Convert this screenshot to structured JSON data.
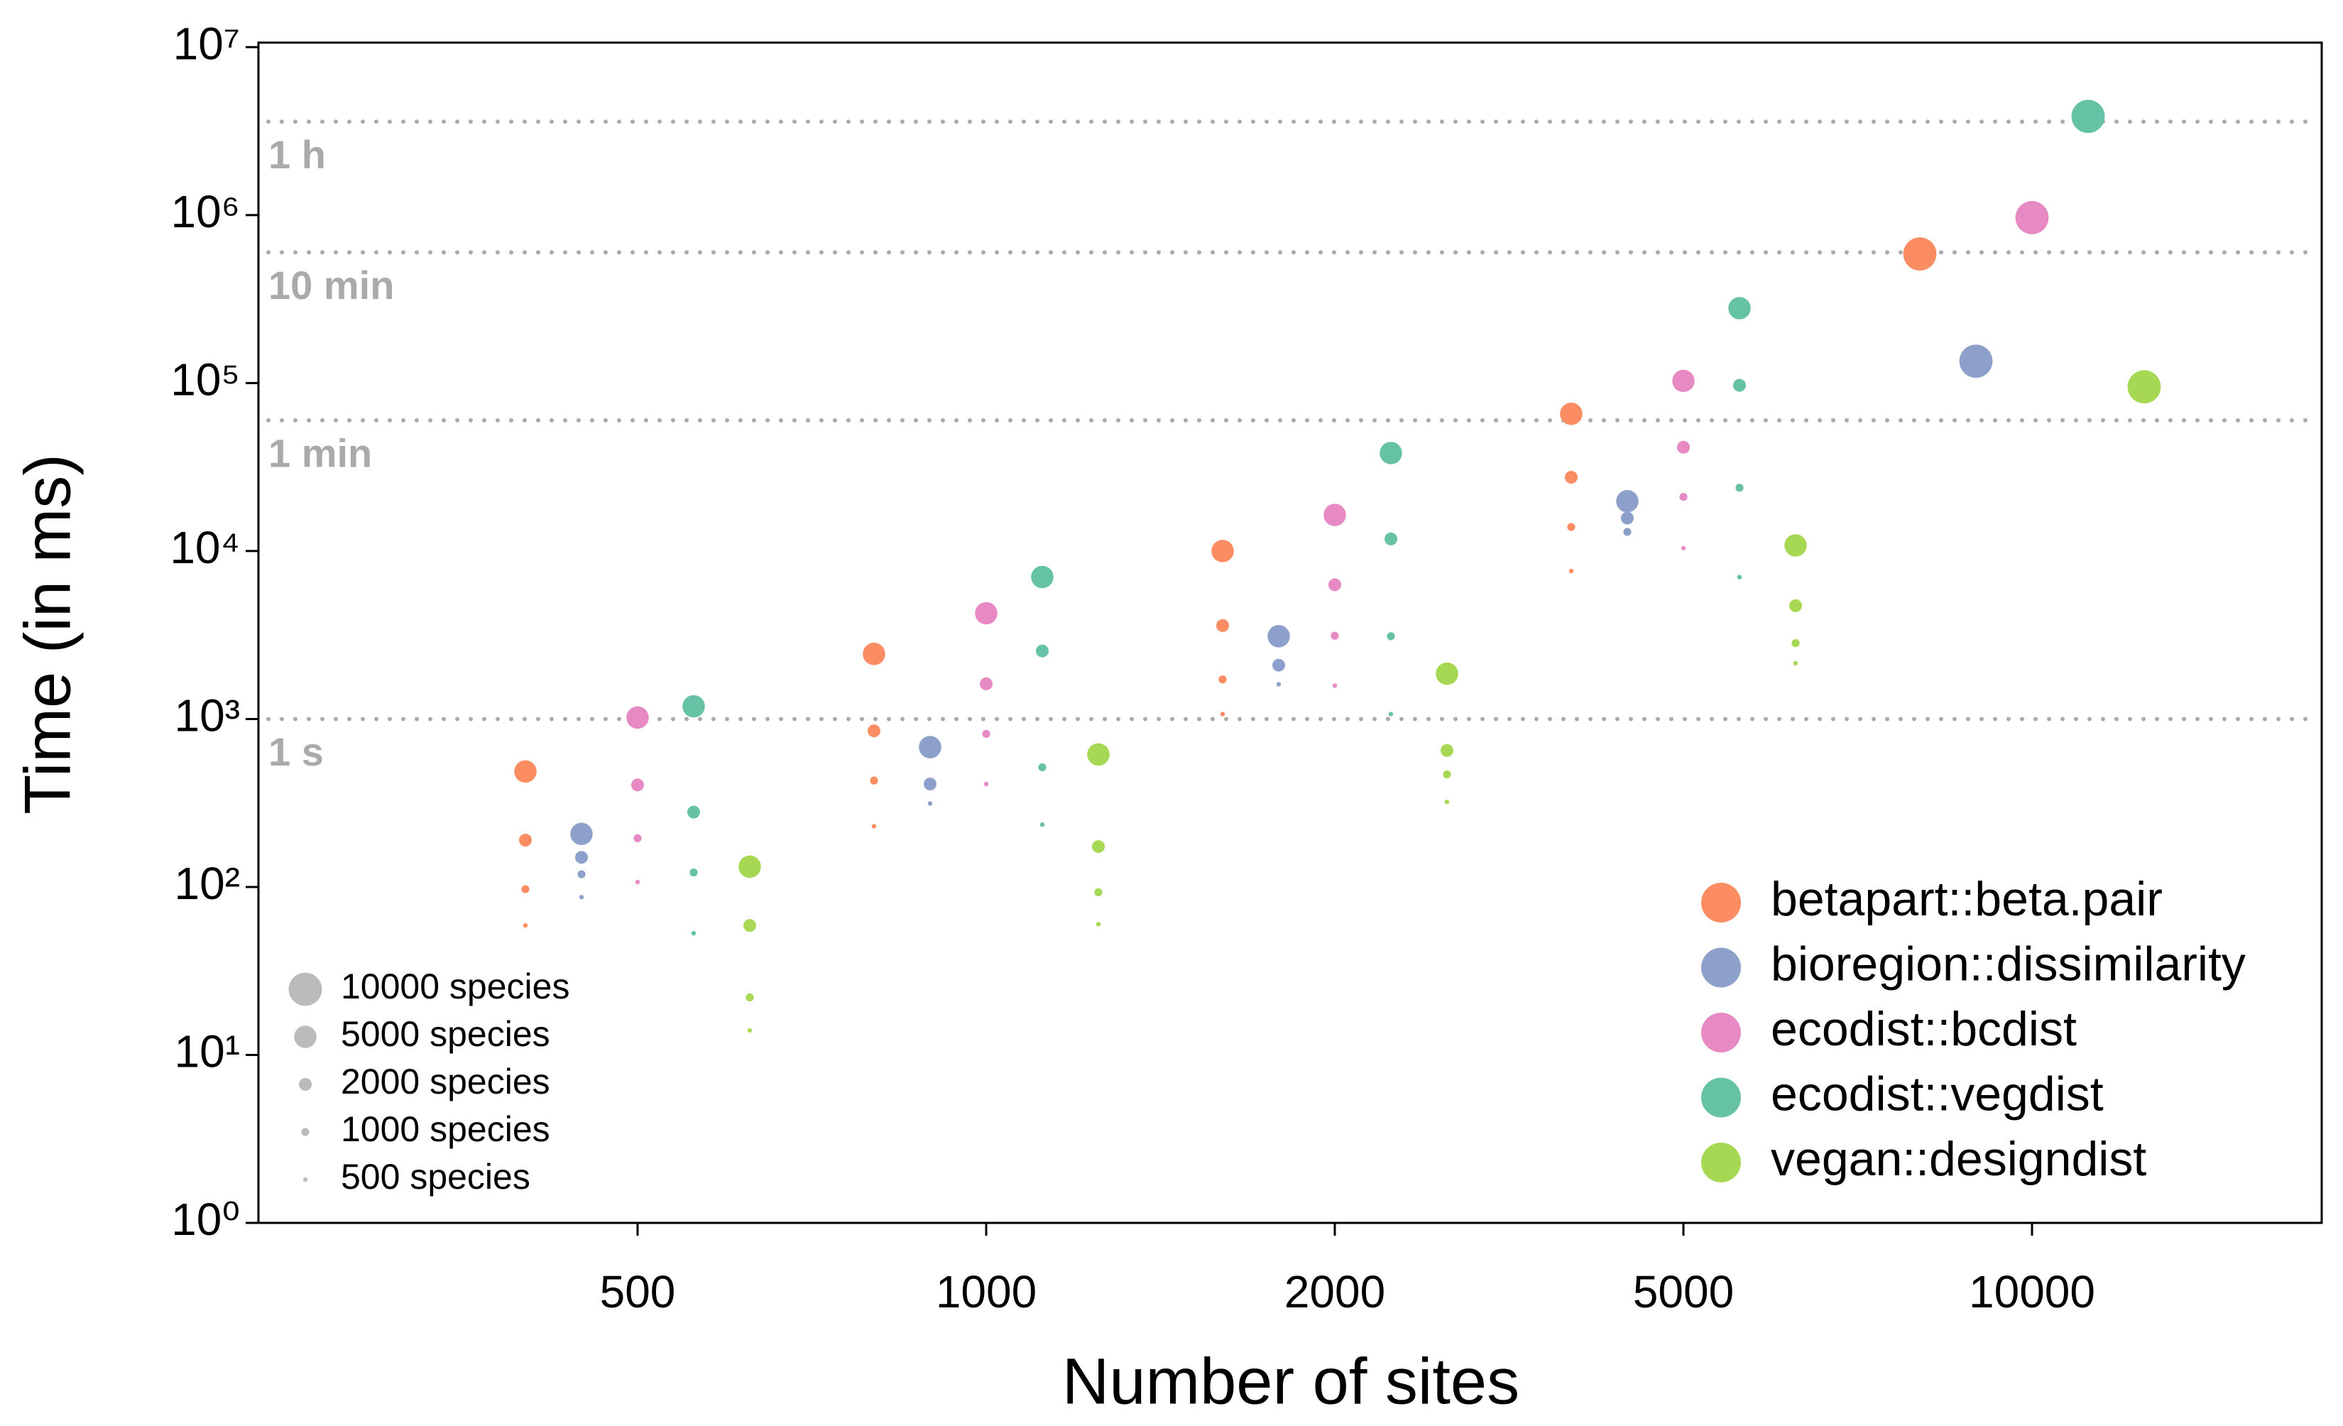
{
  "chart_data": {
    "type": "scatter",
    "xlabel": "Number of sites",
    "ylabel": "Time (in ms)",
    "categories": [
      500,
      1000,
      2000,
      5000,
      10000
    ],
    "ylog": true,
    "ylim": [
      1,
      10640000
    ],
    "yticks": [
      {
        "value": 1,
        "label": "10⁰"
      },
      {
        "value": 10,
        "label": "10¹"
      },
      {
        "value": 100,
        "label": "10²"
      },
      {
        "value": 1000,
        "label": "10³"
      },
      {
        "value": 10000,
        "label": "10⁴"
      },
      {
        "value": 100000,
        "label": "10⁵"
      },
      {
        "value": 1000000,
        "label": "10⁶"
      },
      {
        "value": 10000000,
        "label": "10⁷"
      }
    ],
    "reference_lines": [
      {
        "value": 3600000,
        "label": "1 h"
      },
      {
        "value": 600000,
        "label": "10 min"
      },
      {
        "value": 60000,
        "label": "1 min"
      },
      {
        "value": 1000,
        "label": "1 s"
      }
    ],
    "legend_position": "bottom-right",
    "size_legend": [
      {
        "species": 10000,
        "label": "10000 species"
      },
      {
        "species": 5000,
        "label": "5000 species"
      },
      {
        "species": 2000,
        "label": "2000 species"
      },
      {
        "species": 1000,
        "label": "1000 species"
      },
      {
        "species": 500,
        "label": "500 species"
      }
    ],
    "series": [
      {
        "name": "betapart::beta.pair",
        "color": "#fc8d62",
        "x": [
          500,
          500,
          500,
          500,
          1000,
          1000,
          1000,
          1000,
          2000,
          2000,
          2000,
          2000,
          5000,
          5000,
          5000,
          5000,
          10000
        ],
        "species": [
          5000,
          2000,
          1000,
          500,
          5000,
          2000,
          1000,
          500,
          5000,
          2000,
          1000,
          500,
          5000,
          2000,
          1000,
          500,
          10000
        ],
        "values": [
          487,
          190,
          97,
          59,
          2440,
          850,
          430,
          230,
          10000,
          3600,
          1720,
          1070,
          65600,
          27500,
          13900,
          7600,
          587000
        ]
      },
      {
        "name": "bioregion::dissimilarity",
        "color": "#8da0cb",
        "x": [
          500,
          500,
          500,
          500,
          1000,
          1000,
          1000,
          2000,
          2000,
          2000,
          5000,
          5000,
          5000,
          10000
        ],
        "species": [
          5000,
          2000,
          1000,
          500,
          5000,
          2000,
          500,
          5000,
          2000,
          500,
          5000,
          2000,
          1000,
          10000
        ],
        "values": [
          207,
          150,
          119,
          87,
          680,
          410,
          314,
          3110,
          2090,
          1610,
          19800,
          15700,
          13000,
          135000
        ]
      },
      {
        "name": "ecodist::bcdist",
        "color": "#e78ac3",
        "x": [
          500,
          500,
          500,
          500,
          1000,
          1000,
          1000,
          1000,
          2000,
          2000,
          2000,
          2000,
          5000,
          5000,
          5000,
          5000,
          10000
        ],
        "species": [
          5000,
          2000,
          1000,
          500,
          5000,
          2000,
          1000,
          500,
          5000,
          2000,
          1000,
          500,
          5000,
          2000,
          1000,
          500,
          10000
        ],
        "values": [
          1020,
          405,
          195,
          107,
          4260,
          1620,
          815,
          410,
          16400,
          6300,
          3130,
          1580,
          103000,
          41500,
          21000,
          10400,
          966000
        ]
      },
      {
        "name": "ecodist::vegdist",
        "color": "#66c2a5",
        "x": [
          500,
          500,
          500,
          500,
          1000,
          1000,
          1000,
          1000,
          2000,
          2000,
          2000,
          2000,
          5000,
          5000,
          5000,
          5000,
          10000
        ],
        "species": [
          5000,
          2000,
          1000,
          500,
          5000,
          2000,
          1000,
          500,
          5000,
          2000,
          1000,
          500,
          5000,
          2000,
          1000,
          500,
          10000
        ],
        "values": [
          1190,
          279,
          122,
          53,
          7000,
          2540,
          516,
          235,
          38300,
          11800,
          3110,
          1070,
          279000,
          97000,
          23800,
          7000,
          3870000
        ]
      },
      {
        "name": "vegan::designdist",
        "color": "#a6d854",
        "x": [
          500,
          500,
          500,
          500,
          1000,
          1000,
          1000,
          1000,
          2000,
          2000,
          2000,
          2000,
          5000,
          5000,
          5000,
          5000,
          10000
        ],
        "species": [
          5000,
          2000,
          1000,
          500,
          5000,
          2000,
          1000,
          500,
          5000,
          2000,
          1000,
          500,
          5000,
          2000,
          1000,
          500,
          10000
        ],
        "values": [
          132,
          59,
          22,
          14,
          615,
          174,
          93,
          60,
          1860,
          650,
          468,
          321,
          10800,
          4730,
          2830,
          2150,
          95000
        ]
      }
    ]
  }
}
